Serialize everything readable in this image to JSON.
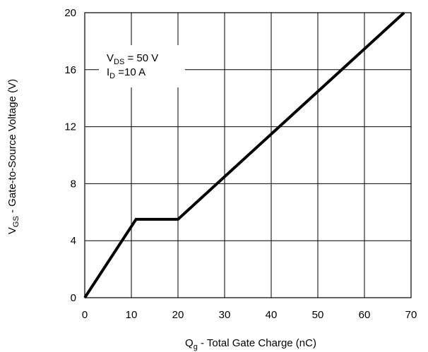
{
  "chart_data": {
    "type": "line",
    "xlabel": {
      "main": "Q",
      "sub": "g",
      "rest": " - Total Gate Charge (nC)"
    },
    "ylabel": {
      "main": "V",
      "sub": "GS",
      "rest": "  - Gate-to-Source Voltage (V)"
    },
    "xlim": [
      0,
      70
    ],
    "ylim": [
      0,
      20
    ],
    "xticks": [
      0,
      10,
      20,
      30,
      40,
      50,
      60,
      70
    ],
    "yticks": [
      0,
      4,
      8,
      12,
      16,
      20
    ],
    "xtick_labels": [
      "0",
      "10",
      "20",
      "30",
      "40",
      "50",
      "60",
      "70"
    ],
    "ytick_labels": [
      "0",
      "4",
      "8",
      "12",
      "16",
      "20"
    ],
    "grid": true,
    "series": [
      {
        "x": [
          0,
          11,
          20,
          68.5
        ],
        "y": [
          0,
          5.5,
          5.5,
          20
        ],
        "color": "#000000"
      }
    ],
    "annotations": [
      {
        "main": "V",
        "sub": "DS",
        "rest": " = 50 V"
      },
      {
        "main": "I",
        "sub": "D",
        "rest": " =10 A"
      }
    ]
  }
}
